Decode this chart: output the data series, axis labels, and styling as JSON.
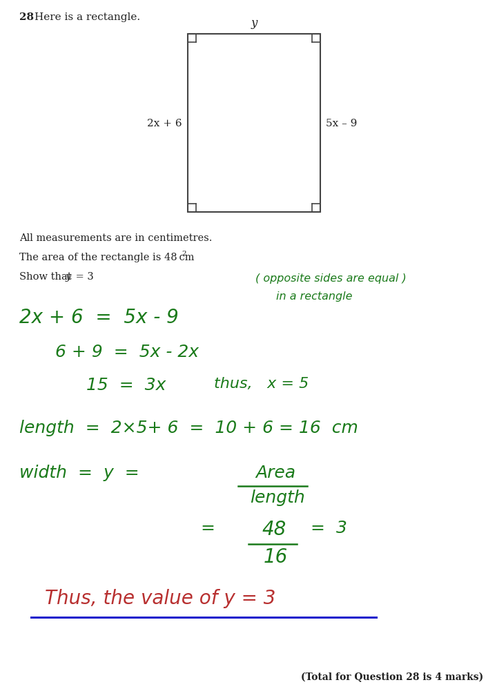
{
  "bg_color": "#ffffff",
  "question_number": "28",
  "question_text": "Here is a rectangle.",
  "label_y": "y",
  "label_left": "2x + 6",
  "label_right": "5x – 9",
  "measurements_text": "All measurements are in centimetres.",
  "area_text_main": "The area of the rectangle is 48 cm",
  "area_superscript": "2",
  "show_text": "Show that ",
  "show_y": "y",
  "show_eq": " = 3",
  "note_line1": "( opposite sides are equal )",
  "note_line2": "in a rectangle",
  "eq1": "2x + 6  =  5x - 9",
  "eq2": "6 + 9  =  5x - 2x",
  "eq3a": "15  =  3x",
  "eq3b": "thus,   x = 5",
  "eq4": "length  =  2×5+ 6  =  10 + 6 = 16  cm",
  "eq5_left": "width  =  y  =",
  "eq5_num": "Area",
  "eq5_den": "length",
  "eq6_eq": "=",
  "eq6_num": "48",
  "eq6_den": "16",
  "eq6_result": "=  3",
  "conclusion": "Thus, the value of y = 3",
  "total_marks": "(Total for Question 28 is 4 marks)",
  "green": "#1a7a1a",
  "red": "#b83030",
  "blue": "#1a1acc",
  "black": "#222222",
  "dark_gray": "#444444"
}
